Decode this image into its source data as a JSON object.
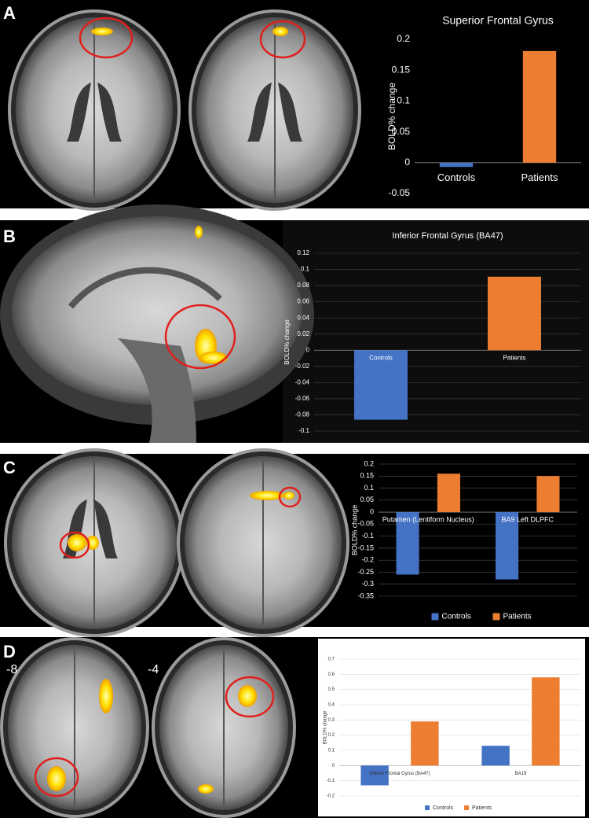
{
  "panel_labels": [
    "A",
    "B",
    "C",
    "D"
  ],
  "slice_labels": [
    "-8",
    "-4"
  ],
  "chart_data": [
    {
      "type": "bar",
      "title": "Superior Frontal Gyrus",
      "y_label": "BOLD% change",
      "categories": [
        "Controls",
        "Patients"
      ],
      "values": [
        -0.007,
        0.181
      ],
      "colors": [
        "#4472c4",
        "#ed7d31"
      ],
      "ylim": [
        -0.05,
        0.2
      ],
      "yticks": [
        -0.05,
        0,
        0.05,
        0.1,
        0.15,
        0.2
      ],
      "grid": false
    },
    {
      "type": "bar",
      "title": "Inferior Frontal Gyrus (BA47)",
      "y_label": "BOLD% change",
      "categories": [
        "Controls",
        "Patients"
      ],
      "values": [
        -0.086,
        0.091
      ],
      "colors": [
        "#4472c4",
        "#ed7d31"
      ],
      "ylim": [
        -0.1,
        0.12
      ],
      "yticks": [
        -0.1,
        -0.08,
        -0.06,
        -0.04,
        -0.02,
        0,
        0.02,
        0.04,
        0.06,
        0.08,
        0.1,
        0.12
      ],
      "grid": true
    },
    {
      "type": "grouped-bar",
      "y_label": "BOLD% change",
      "categories": [
        "Putamen (Lentiform Nucleus)",
        "BA9 Left DLPFC"
      ],
      "series": [
        {
          "name": "Controls",
          "color": "#4472c4",
          "values": [
            -0.26,
            -0.28
          ]
        },
        {
          "name": "Patients",
          "color": "#ed7d31",
          "values": [
            0.16,
            0.15
          ]
        }
      ],
      "ylim": [
        -0.35,
        0.2
      ],
      "yticks": [
        -0.35,
        -0.3,
        -0.25,
        -0.2,
        -0.15,
        -0.1,
        -0.05,
        0,
        0.05,
        0.1,
        0.15,
        0.2
      ],
      "grid": true,
      "legend": "bottom"
    },
    {
      "type": "grouped-bar",
      "y_label": "BOLD% change",
      "categories": [
        "Inferior Frontal Gyrus (BA47)",
        "BA19"
      ],
      "series": [
        {
          "name": "Controls",
          "color": "#4472c4",
          "values": [
            -0.13,
            0.13
          ]
        },
        {
          "name": "Patients",
          "color": "#ed7d31",
          "values": [
            0.29,
            0.58
          ]
        }
      ],
      "ylim": [
        -0.2,
        0.7
      ],
      "yticks": [
        -0.2,
        -0.1,
        0,
        0.1,
        0.2,
        0.3,
        0.4,
        0.5,
        0.6,
        0.7
      ],
      "grid": true,
      "legend": "bottom"
    }
  ]
}
